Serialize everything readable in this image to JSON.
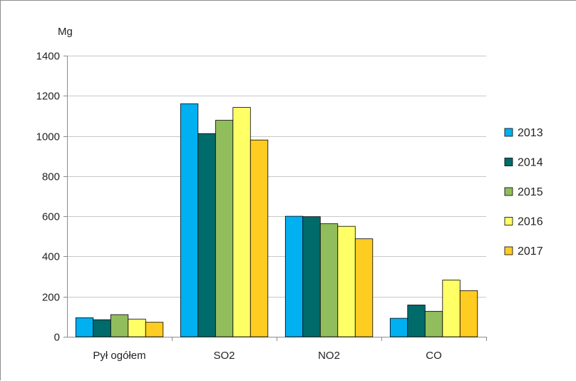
{
  "chart_data": {
    "type": "bar",
    "title": "",
    "ylabel": "Mg",
    "xlabel": "",
    "categories": [
      "Pył ogółem",
      "SO2",
      "NO2",
      "CO"
    ],
    "ylim": [
      0,
      1400
    ],
    "yticks": [
      0,
      200,
      400,
      600,
      800,
      1000,
      1200,
      1400
    ],
    "grid": true,
    "legend_position": "right",
    "series": [
      {
        "name": "2013",
        "color": "#00B0F0",
        "values": [
          95,
          1160,
          600,
          92
        ]
      },
      {
        "name": "2014",
        "color": "#006B6B",
        "values": [
          85,
          1012,
          598,
          158
        ]
      },
      {
        "name": "2015",
        "color": "#92BD5C",
        "values": [
          110,
          1078,
          563,
          127
        ]
      },
      {
        "name": "2016",
        "color": "#FFFF66",
        "values": [
          88,
          1142,
          550,
          282
        ]
      },
      {
        "name": "2017",
        "color": "#FFCC22",
        "values": [
          72,
          980,
          488,
          230
        ]
      }
    ]
  }
}
